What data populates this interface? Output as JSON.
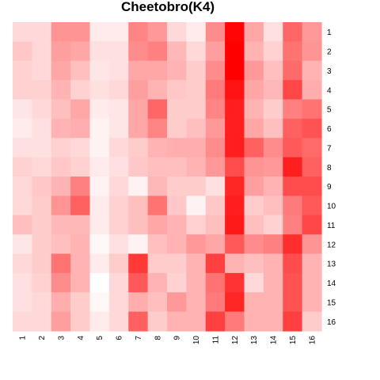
{
  "chart_data": {
    "type": "heatmap",
    "title": "Cheetobro(K4)",
    "x_labels": [
      "1",
      "2",
      "3",
      "4",
      "5",
      "6",
      "7",
      "8",
      "9",
      "10",
      "11",
      "12",
      "13",
      "14",
      "15",
      "16"
    ],
    "y_labels": [
      "1",
      "2",
      "3",
      "4",
      "5",
      "6",
      "7",
      "8",
      "9",
      "10",
      "11",
      "12",
      "13",
      "14",
      "15",
      "16"
    ],
    "color_low": "#ffffff",
    "color_high": "#ff0000",
    "value_range": [
      0,
      1
    ],
    "values": [
      [
        0.15,
        0.15,
        0.42,
        0.42,
        0.08,
        0.08,
        0.48,
        0.4,
        0.15,
        0.08,
        0.45,
        0.98,
        0.35,
        0.12,
        0.6,
        0.4
      ],
      [
        0.22,
        0.15,
        0.38,
        0.35,
        0.12,
        0.12,
        0.45,
        0.5,
        0.28,
        0.15,
        0.38,
        1.0,
        0.3,
        0.18,
        0.55,
        0.42
      ],
      [
        0.18,
        0.15,
        0.35,
        0.25,
        0.1,
        0.12,
        0.35,
        0.35,
        0.3,
        0.2,
        0.45,
        1.0,
        0.4,
        0.25,
        0.58,
        0.3
      ],
      [
        0.18,
        0.18,
        0.3,
        0.18,
        0.12,
        0.15,
        0.38,
        0.3,
        0.22,
        0.2,
        0.52,
        0.92,
        0.35,
        0.28,
        0.72,
        0.32
      ],
      [
        0.1,
        0.15,
        0.25,
        0.35,
        0.08,
        0.1,
        0.35,
        0.6,
        0.2,
        0.2,
        0.48,
        0.88,
        0.3,
        0.2,
        0.5,
        0.55
      ],
      [
        0.08,
        0.12,
        0.3,
        0.32,
        0.05,
        0.1,
        0.35,
        0.48,
        0.2,
        0.25,
        0.4,
        0.88,
        0.35,
        0.25,
        0.62,
        0.68
      ],
      [
        0.12,
        0.12,
        0.18,
        0.15,
        0.05,
        0.15,
        0.2,
        0.3,
        0.32,
        0.32,
        0.45,
        0.88,
        0.62,
        0.45,
        0.65,
        0.58
      ],
      [
        0.18,
        0.15,
        0.22,
        0.18,
        0.08,
        0.12,
        0.22,
        0.25,
        0.25,
        0.3,
        0.4,
        0.7,
        0.42,
        0.4,
        0.88,
        0.62
      ],
      [
        0.15,
        0.22,
        0.3,
        0.5,
        0.05,
        0.15,
        0.05,
        0.28,
        0.2,
        0.2,
        0.12,
        0.85,
        0.38,
        0.3,
        0.7,
        0.7
      ],
      [
        0.15,
        0.2,
        0.42,
        0.62,
        0.08,
        0.18,
        0.25,
        0.55,
        0.22,
        0.05,
        0.22,
        0.88,
        0.2,
        0.25,
        0.52,
        0.65
      ],
      [
        0.25,
        0.2,
        0.28,
        0.28,
        0.08,
        0.18,
        0.25,
        0.35,
        0.3,
        0.18,
        0.25,
        0.9,
        0.25,
        0.18,
        0.5,
        0.72
      ],
      [
        0.1,
        0.2,
        0.25,
        0.3,
        0.03,
        0.12,
        0.05,
        0.25,
        0.3,
        0.4,
        0.35,
        0.65,
        0.45,
        0.5,
        0.82,
        0.42
      ],
      [
        0.15,
        0.2,
        0.55,
        0.3,
        0.08,
        0.2,
        0.78,
        0.2,
        0.2,
        0.3,
        0.75,
        0.3,
        0.25,
        0.3,
        0.7,
        0.3
      ],
      [
        0.12,
        0.18,
        0.45,
        0.3,
        0.0,
        0.15,
        0.65,
        0.3,
        0.18,
        0.3,
        0.55,
        0.8,
        0.15,
        0.3,
        0.68,
        0.3
      ],
      [
        0.12,
        0.15,
        0.32,
        0.2,
        0.03,
        0.15,
        0.32,
        0.25,
        0.4,
        0.3,
        0.52,
        0.85,
        0.3,
        0.3,
        0.68,
        0.3
      ],
      [
        0.15,
        0.15,
        0.38,
        0.2,
        0.08,
        0.15,
        0.62,
        0.2,
        0.3,
        0.3,
        0.75,
        0.52,
        0.3,
        0.3,
        0.75,
        0.2
      ]
    ]
  }
}
